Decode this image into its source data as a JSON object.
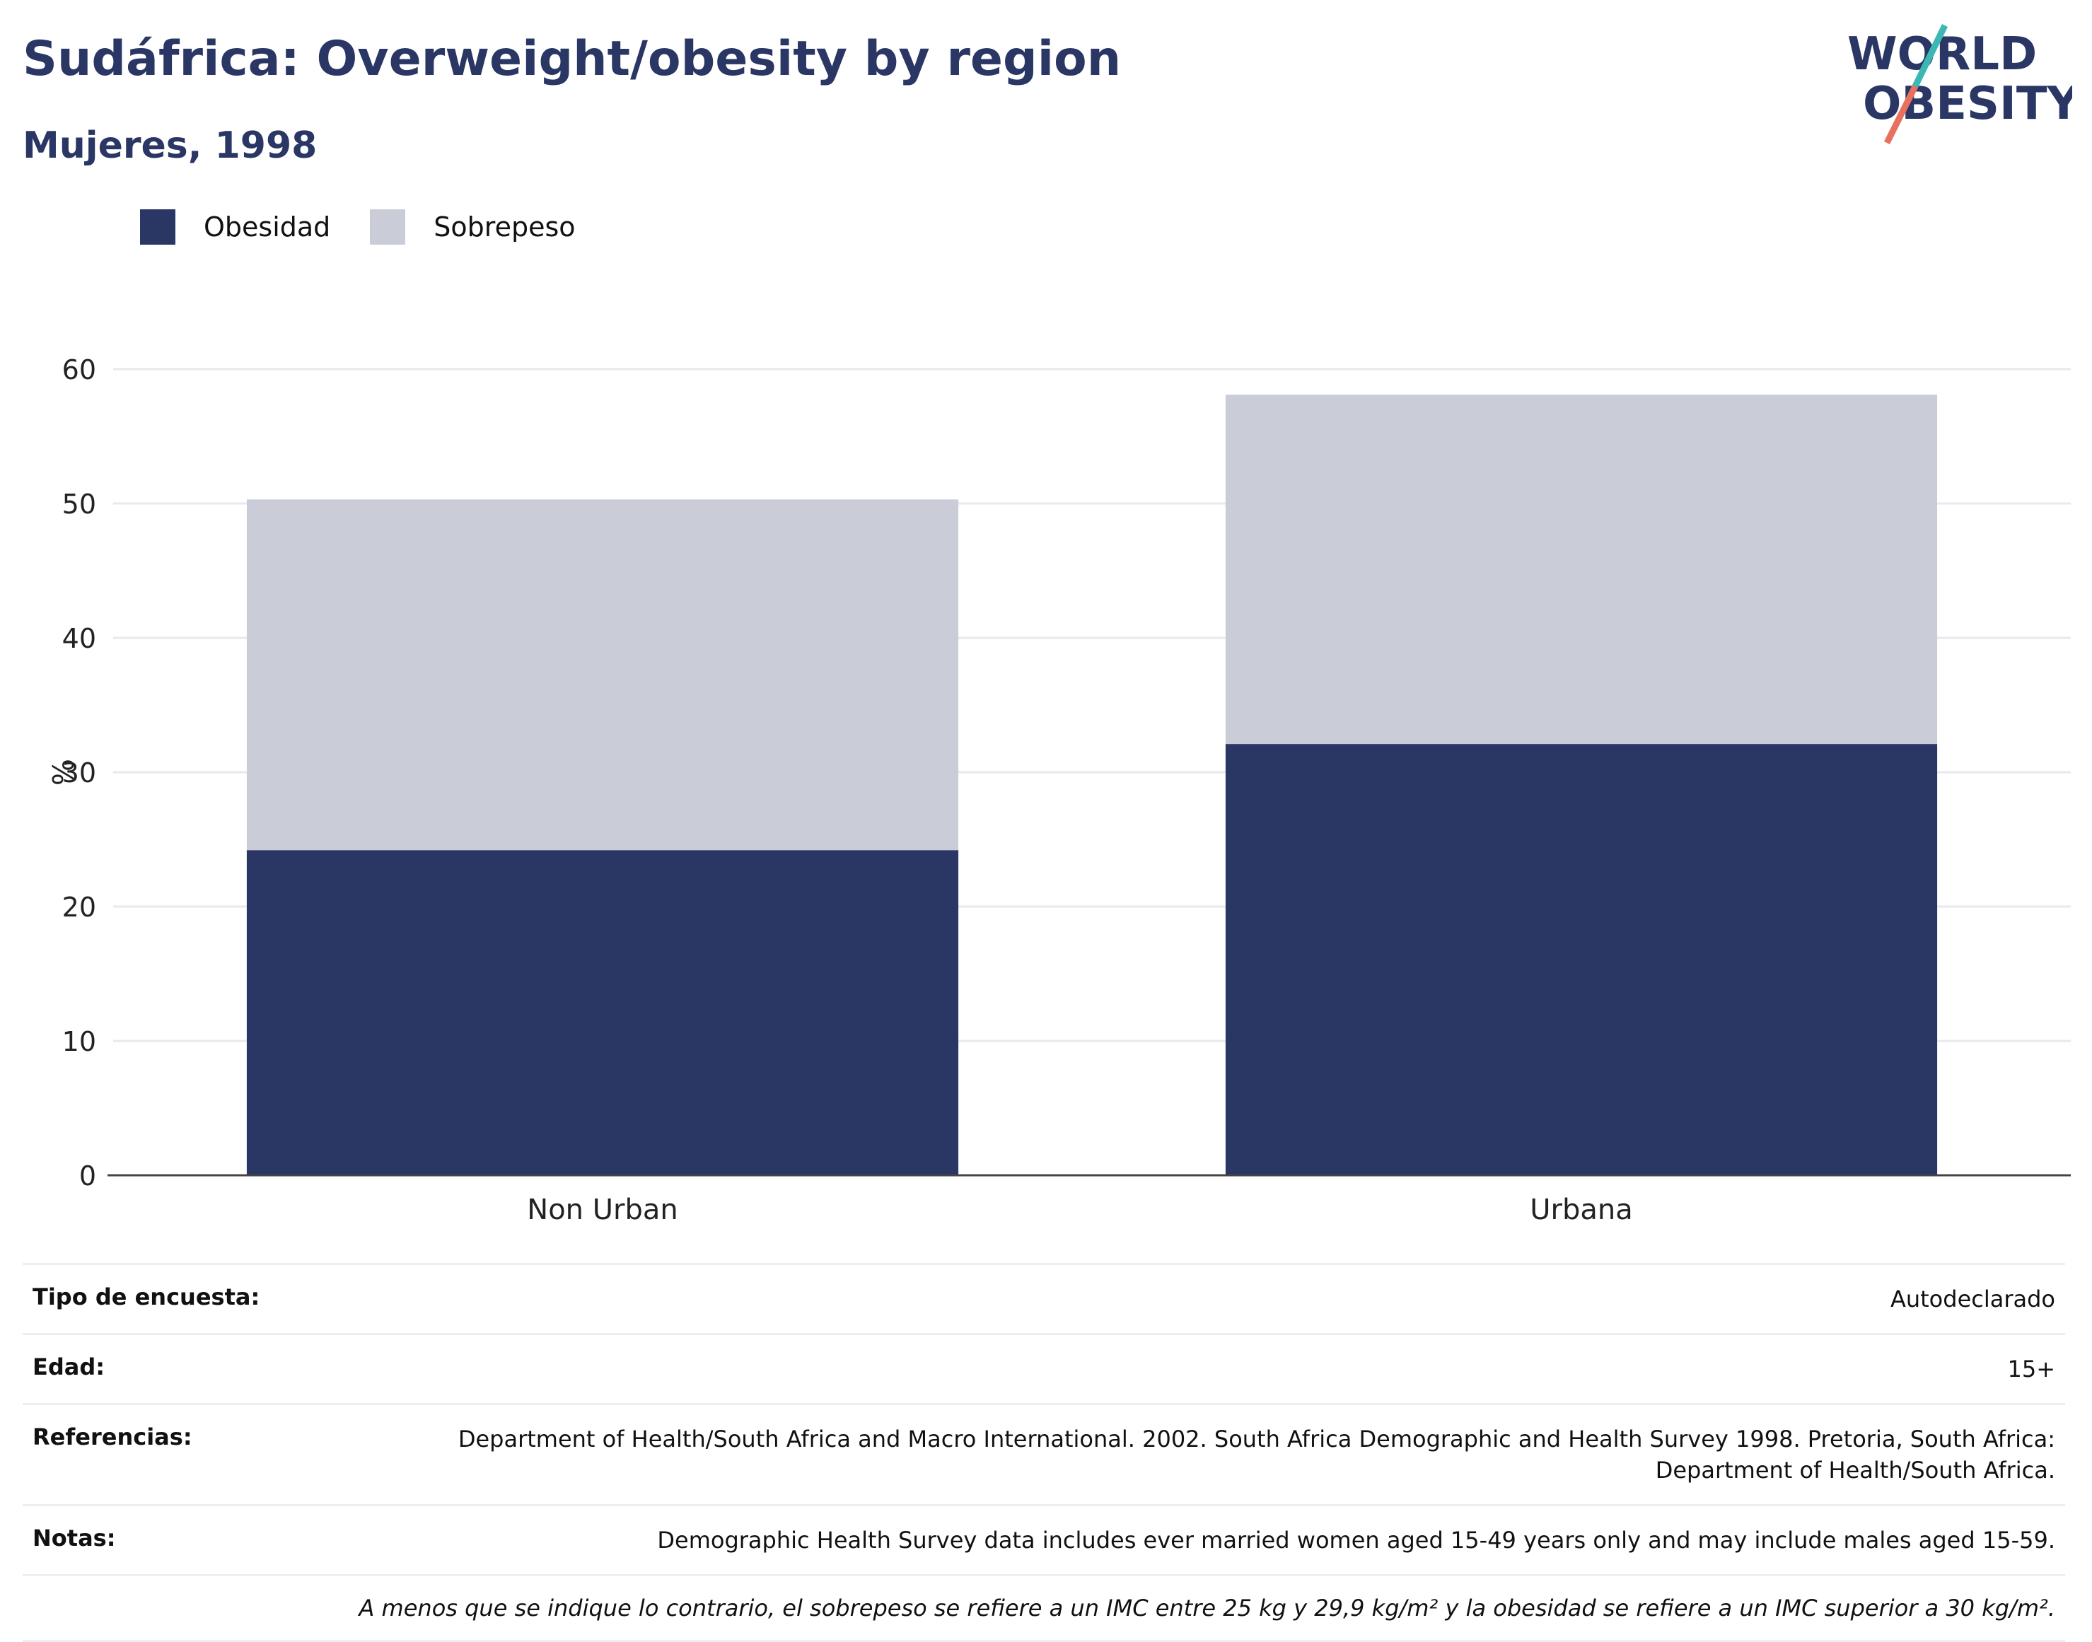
{
  "header": {
    "title": "Sudáfrica: Overweight/obesity by region",
    "subtitle": "Mujeres, 1998"
  },
  "logo": {
    "line1": "WORLD",
    "line2": "OBESITY",
    "colors": {
      "text": "#2a3664",
      "slash_teal": "#3bb8b4",
      "slash_coral": "#e8705f"
    }
  },
  "colors": {
    "obesidad": "#2a3664",
    "sobrepeso": "#cacdd8",
    "grid": "#e8e9ee",
    "axis": "#444444"
  },
  "chart_data": {
    "type": "bar",
    "stacked": true,
    "categories": [
      "Non Urban",
      "Urbana"
    ],
    "series": [
      {
        "name": "Obesidad",
        "values": [
          24.2,
          32.1
        ]
      },
      {
        "name": "Sobrepeso",
        "values": [
          26.1,
          26.0
        ]
      }
    ],
    "xlabel": "",
    "ylabel": "%",
    "ylim": [
      0,
      60
    ],
    "yticks": [
      0,
      10,
      20,
      30,
      40,
      50,
      60
    ],
    "grid": true,
    "legend_position": "top-left"
  },
  "meta": {
    "rows": [
      {
        "key": "Tipo de encuesta:",
        "value": "Autodeclarado"
      },
      {
        "key": "Edad:",
        "value": "15+"
      },
      {
        "key": "Referencias:",
        "value": "Department of Health/South Africa and Macro International. 2002. South Africa Demographic and Health Survey 1998. Pretoria, South Africa: Department of Health/South Africa."
      },
      {
        "key": "Notas:",
        "value": "Demographic Health Survey data includes ever married women aged 15-49 years only and may include males aged 15-59."
      }
    ],
    "footnote": "A menos que se indique lo contrario, el sobrepeso se refiere a un IMC entre 25 kg y 29,9 kg/m² y la obesidad se refiere a un IMC superior a 30 kg/m²."
  }
}
